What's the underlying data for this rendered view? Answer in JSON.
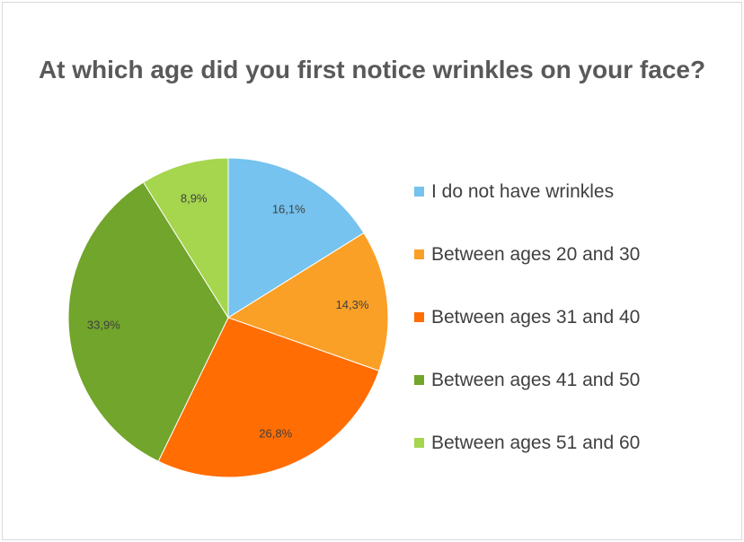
{
  "chart_data": {
    "type": "pie",
    "title": "At which age did you first notice wrinkles on your face?",
    "slices": [
      {
        "label": "I do not have wrinkles",
        "value": 16.1,
        "display": "16,1%",
        "color": "#75C3EE"
      },
      {
        "label": "Between ages 20 and 30",
        "value": 14.3,
        "display": "14,3%",
        "color": "#FBA026"
      },
      {
        "label": "Between ages 31 and 40",
        "value": 26.8,
        "display": "26,8%",
        "color": "#FF6D03"
      },
      {
        "label": "Between ages 41 and 50",
        "value": 33.9,
        "display": "33,9%",
        "color": "#72A52B"
      },
      {
        "label": "Between ages 51 and 60",
        "value": 8.9,
        "display": "8,9%",
        "color": "#A5D64E"
      }
    ],
    "legend_position": "right",
    "start_angle": "top, clockwise"
  }
}
